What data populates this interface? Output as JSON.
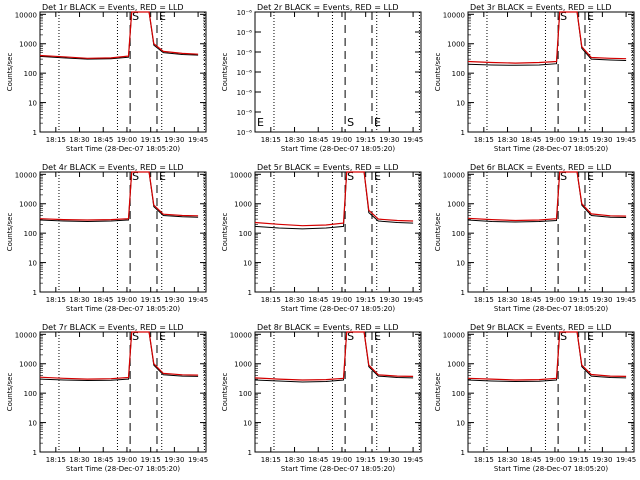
{
  "window": {
    "background": "#ffffff"
  },
  "colors": {
    "events": "#000000",
    "lld": "#d40000",
    "axis": "#000000"
  },
  "x_time_ticks": [
    "18:15",
    "18:30",
    "18:45",
    "19:00",
    "19:15",
    "19:30",
    "19:45"
  ],
  "chart_data": [
    {
      "type": "line",
      "title": "Det 1r BLACK = Events, RED = LLD",
      "xlabel": "Start Time (28-Dec-07 18:05:20)",
      "ylabel": "Counts/sec",
      "yscale": "log",
      "ylim": [
        1,
        12000
      ],
      "xlim": [
        "18:05",
        "19:50"
      ],
      "yticks": [
        "1",
        "10",
        "100",
        "1000",
        "10000"
      ],
      "markers": [
        {
          "label": "S",
          "time": "19:02",
          "style": "dashed"
        },
        {
          "label": "E",
          "time": "19:19",
          "style": "dashed"
        }
      ],
      "dotted_lines": [
        "18:17",
        "18:54",
        "19:22",
        "19:49"
      ],
      "x": [
        "18:05",
        "18:20",
        "18:35",
        "18:50",
        "19:01",
        "19:03",
        "19:06",
        "19:14",
        "19:17",
        "19:23",
        "19:35",
        "19:45"
      ],
      "series": [
        {
          "name": "Events",
          "values": [
            370,
            330,
            300,
            310,
            350,
            12000,
            12000,
            12000,
            900,
            500,
            430,
            410
          ]
        },
        {
          "name": "LLD",
          "values": [
            400,
            360,
            320,
            330,
            380,
            12000,
            12000,
            12000,
            1000,
            550,
            470,
            440
          ]
        }
      ]
    },
    {
      "type": "line",
      "title": "Det 2r BLACK = Events, RED = LLD",
      "xlabel": "Start Time (28-Dec-07 18:05:20)",
      "ylabel": "Counts/sec",
      "yscale": "log",
      "ylim": [
        9e-07,
        1.15e-06
      ],
      "xlim": [
        "18:05",
        "19:50"
      ],
      "yticks": [
        "10⁻⁶",
        "10⁻⁶",
        "10⁻⁶",
        "10⁻⁶",
        "10⁻⁶",
        "10⁻⁶",
        "10⁻⁶"
      ],
      "markers": [
        {
          "label": "S",
          "time": "19:02",
          "style": "dashed"
        },
        {
          "label": "E",
          "time": "19:19",
          "style": "dashed"
        }
      ],
      "corner_label": "E",
      "dotted_lines": [
        "18:17",
        "18:54",
        "19:22",
        "19:49"
      ],
      "x": [],
      "series": []
    },
    {
      "type": "line",
      "title": "Det 3r BLACK = Events, RED = LLD",
      "xlabel": "Start Time (28-Dec-07 18:05:20)",
      "ylabel": "Counts/sec",
      "yscale": "log",
      "ylim": [
        1,
        12000
      ],
      "xlim": [
        "18:05",
        "19:50"
      ],
      "yticks": [
        "1",
        "10",
        "100",
        "1000",
        "10000"
      ],
      "markers": [
        {
          "label": "S",
          "time": "19:02",
          "style": "dashed"
        },
        {
          "label": "E",
          "time": "19:19",
          "style": "dashed"
        }
      ],
      "dotted_lines": [
        "18:17",
        "18:54",
        "19:22",
        "19:49"
      ],
      "x": [
        "18:05",
        "18:20",
        "18:35",
        "18:50",
        "19:01",
        "19:03",
        "19:06",
        "19:14",
        "19:17",
        "19:23",
        "19:35",
        "19:45"
      ],
      "series": [
        {
          "name": "Events",
          "values": [
            200,
            190,
            185,
            190,
            210,
            12000,
            12000,
            12000,
            700,
            300,
            280,
            270
          ]
        },
        {
          "name": "LLD",
          "values": [
            250,
            230,
            220,
            230,
            250,
            12000,
            12000,
            12000,
            800,
            340,
            320,
            310
          ]
        }
      ]
    },
    {
      "type": "line",
      "title": "Det 4r BLACK = Events, RED = LLD",
      "xlabel": "Start Time (28-Dec-07 18:05:20)",
      "ylabel": "Counts/sec",
      "yscale": "log",
      "ylim": [
        1,
        12000
      ],
      "xlim": [
        "18:05",
        "19:50"
      ],
      "yticks": [
        "1",
        "10",
        "100",
        "1000",
        "10000"
      ],
      "markers": [
        {
          "label": "S",
          "time": "19:02",
          "style": "dashed"
        },
        {
          "label": "E",
          "time": "19:19",
          "style": "dashed"
        }
      ],
      "dotted_lines": [
        "18:17",
        "18:54",
        "19:22",
        "19:49"
      ],
      "x": [
        "18:05",
        "18:20",
        "18:35",
        "18:50",
        "19:01",
        "19:03",
        "19:06",
        "19:14",
        "19:17",
        "19:23",
        "19:35",
        "19:45"
      ],
      "series": [
        {
          "name": "Events",
          "values": [
            280,
            260,
            250,
            260,
            280,
            12000,
            12000,
            12000,
            800,
            400,
            360,
            350
          ]
        },
        {
          "name": "LLD",
          "values": [
            310,
            290,
            280,
            290,
            310,
            12000,
            12000,
            12000,
            900,
            440,
            400,
            390
          ]
        }
      ]
    },
    {
      "type": "line",
      "title": "Det 5r BLACK = Events, RED = LLD",
      "xlabel": "Start Time (28-Dec-07 18:05:20)",
      "ylabel": "Counts/sec",
      "yscale": "log",
      "ylim": [
        1,
        12000
      ],
      "xlim": [
        "18:05",
        "19:50"
      ],
      "yticks": [
        "1",
        "10",
        "100",
        "1000",
        "10000"
      ],
      "markers": [
        {
          "label": "S",
          "time": "19:02",
          "style": "dashed"
        },
        {
          "label": "E",
          "time": "19:19",
          "style": "dashed"
        }
      ],
      "dotted_lines": [
        "18:17",
        "18:54",
        "19:22",
        "19:49"
      ],
      "x": [
        "18:05",
        "18:20",
        "18:35",
        "18:50",
        "19:01",
        "19:03",
        "19:06",
        "19:14",
        "19:17",
        "19:23",
        "19:35",
        "19:45"
      ],
      "series": [
        {
          "name": "Events",
          "values": [
            170,
            150,
            140,
            150,
            170,
            12000,
            12000,
            12000,
            500,
            260,
            230,
            220
          ]
        },
        {
          "name": "LLD",
          "values": [
            230,
            200,
            180,
            190,
            220,
            12000,
            12000,
            12000,
            600,
            300,
            270,
            260
          ]
        }
      ]
    },
    {
      "type": "line",
      "title": "Det 6r BLACK = Events, RED = LLD",
      "xlabel": "Start Time (28-Dec-07 18:05:20)",
      "ylabel": "Counts/sec",
      "yscale": "log",
      "ylim": [
        1,
        12000
      ],
      "xlim": [
        "18:05",
        "19:50"
      ],
      "yticks": [
        "1",
        "10",
        "100",
        "1000",
        "10000"
      ],
      "markers": [
        {
          "label": "S",
          "time": "19:02",
          "style": "dashed"
        },
        {
          "label": "E",
          "time": "19:19",
          "style": "dashed"
        }
      ],
      "dotted_lines": [
        "18:17",
        "18:54",
        "19:22",
        "19:49"
      ],
      "x": [
        "18:05",
        "18:20",
        "18:35",
        "18:50",
        "19:01",
        "19:03",
        "19:06",
        "19:14",
        "19:17",
        "19:23",
        "19:35",
        "19:45"
      ],
      "series": [
        {
          "name": "Events",
          "values": [
            280,
            250,
            240,
            250,
            270,
            12000,
            12000,
            12000,
            900,
            400,
            350,
            340
          ]
        },
        {
          "name": "LLD",
          "values": [
            320,
            290,
            270,
            280,
            310,
            12000,
            12000,
            12000,
            1000,
            450,
            390,
            380
          ]
        }
      ]
    },
    {
      "type": "line",
      "title": "Det 7r BLACK = Events, RED = LLD",
      "xlabel": "Start Time (28-Dec-07 18:05:20)",
      "ylabel": "Counts/sec",
      "yscale": "log",
      "ylim": [
        1,
        12000
      ],
      "xlim": [
        "18:05",
        "19:50"
      ],
      "yticks": [
        "1",
        "10",
        "100",
        "1000",
        "10000"
      ],
      "markers": [
        {
          "label": "S",
          "time": "19:02",
          "style": "dashed"
        },
        {
          "label": "E",
          "time": "19:19",
          "style": "dashed"
        }
      ],
      "dotted_lines": [
        "18:17",
        "18:54",
        "19:22",
        "19:49"
      ],
      "x": [
        "18:05",
        "18:20",
        "18:35",
        "18:50",
        "19:01",
        "19:03",
        "19:06",
        "19:14",
        "19:17",
        "19:23",
        "19:35",
        "19:45"
      ],
      "series": [
        {
          "name": "Events",
          "values": [
            300,
            280,
            270,
            275,
            300,
            12000,
            12000,
            12000,
            900,
            420,
            380,
            370
          ]
        },
        {
          "name": "LLD",
          "values": [
            350,
            320,
            300,
            310,
            340,
            12000,
            12000,
            12000,
            1000,
            470,
            420,
            410
          ]
        }
      ]
    },
    {
      "type": "line",
      "title": "Det 8r BLACK = Events, RED = LLD",
      "xlabel": "Start Time (28-Dec-07 18:05:20)",
      "ylabel": "Counts/sec",
      "yscale": "log",
      "ylim": [
        1,
        12000
      ],
      "xlim": [
        "18:05",
        "19:50"
      ],
      "yticks": [
        "1",
        "10",
        "100",
        "1000",
        "10000"
      ],
      "markers": [
        {
          "label": "S",
          "time": "19:02",
          "style": "dashed"
        },
        {
          "label": "E",
          "time": "19:19",
          "style": "dashed"
        }
      ],
      "dotted_lines": [
        "18:17",
        "18:54",
        "19:22",
        "19:49"
      ],
      "x": [
        "18:05",
        "18:20",
        "18:35",
        "18:50",
        "19:01",
        "19:03",
        "19:06",
        "19:14",
        "19:17",
        "19:23",
        "19:35",
        "19:45"
      ],
      "series": [
        {
          "name": "Events",
          "values": [
            280,
            260,
            240,
            250,
            280,
            12000,
            12000,
            12000,
            800,
            380,
            340,
            330
          ]
        },
        {
          "name": "LLD",
          "values": [
            330,
            300,
            280,
            290,
            320,
            12000,
            12000,
            12000,
            900,
            420,
            380,
            370
          ]
        }
      ]
    },
    {
      "type": "line",
      "title": "Det 9r BLACK = Events, RED = LLD",
      "xlabel": "Start Time (28-Dec-07 18:05:20)",
      "ylabel": "Counts/sec",
      "yscale": "log",
      "ylim": [
        1,
        12000
      ],
      "xlim": [
        "18:05",
        "19:50"
      ],
      "yticks": [
        "1",
        "10",
        "100",
        "1000",
        "10000"
      ],
      "markers": [
        {
          "label": "S",
          "time": "19:02",
          "style": "dashed"
        },
        {
          "label": "E",
          "time": "19:19",
          "style": "dashed"
        }
      ],
      "dotted_lines": [
        "18:17",
        "18:54",
        "19:22",
        "19:49"
      ],
      "x": [
        "18:05",
        "18:20",
        "18:35",
        "18:50",
        "19:01",
        "19:03",
        "19:06",
        "19:14",
        "19:17",
        "19:23",
        "19:35",
        "19:45"
      ],
      "series": [
        {
          "name": "Events",
          "values": [
            280,
            260,
            250,
            255,
            280,
            12000,
            12000,
            12000,
            800,
            380,
            340,
            330
          ]
        },
        {
          "name": "LLD",
          "values": [
            320,
            300,
            280,
            290,
            320,
            12000,
            12000,
            12000,
            900,
            430,
            380,
            370
          ]
        }
      ]
    }
  ]
}
